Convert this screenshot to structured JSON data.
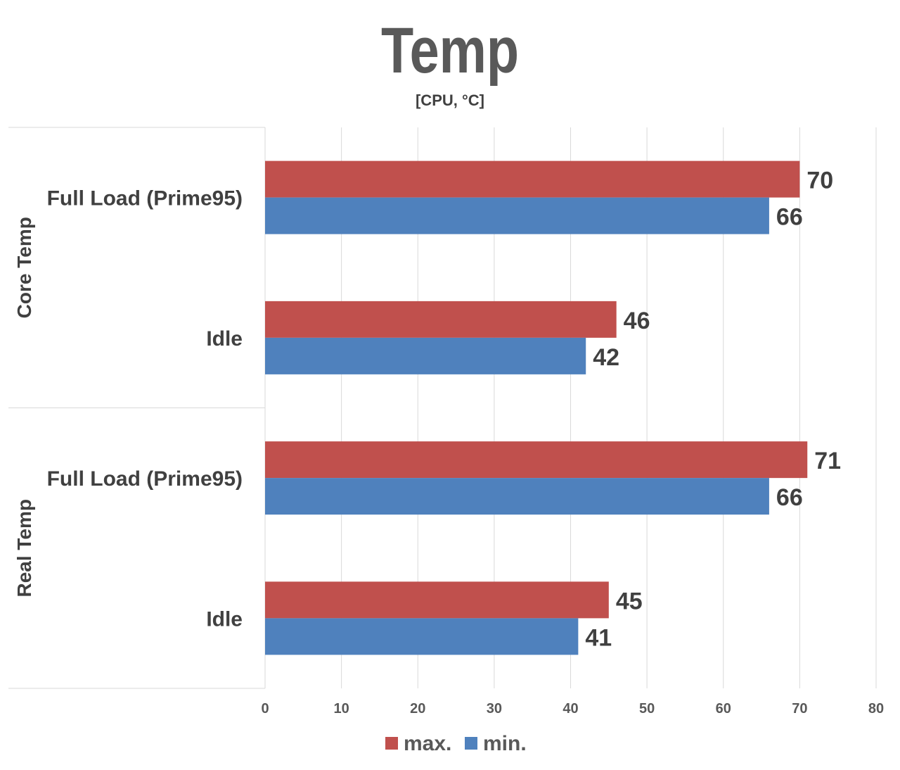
{
  "chart_data": {
    "type": "bar",
    "orientation": "horizontal",
    "title": "Temp",
    "subtitle": "[CPU, °C]",
    "groups": [
      {
        "name": "Core Temp",
        "categories": [
          "Full Load (Prime95)",
          "Idle"
        ]
      },
      {
        "name": "Real Temp",
        "categories": [
          "Full Load (Prime95)",
          "Idle"
        ]
      }
    ],
    "series": [
      {
        "name": "max.",
        "color": "#C0504D",
        "values": [
          70,
          46,
          71,
          45
        ]
      },
      {
        "name": "min.",
        "color": "#4F81BD",
        "values": [
          66,
          42,
          66,
          41
        ]
      }
    ],
    "xlim": [
      0,
      80
    ],
    "xticks": [
      0,
      10,
      20,
      30,
      40,
      50,
      60,
      70,
      80
    ],
    "grid": true,
    "legend_position": "bottom",
    "data_labels": true
  }
}
